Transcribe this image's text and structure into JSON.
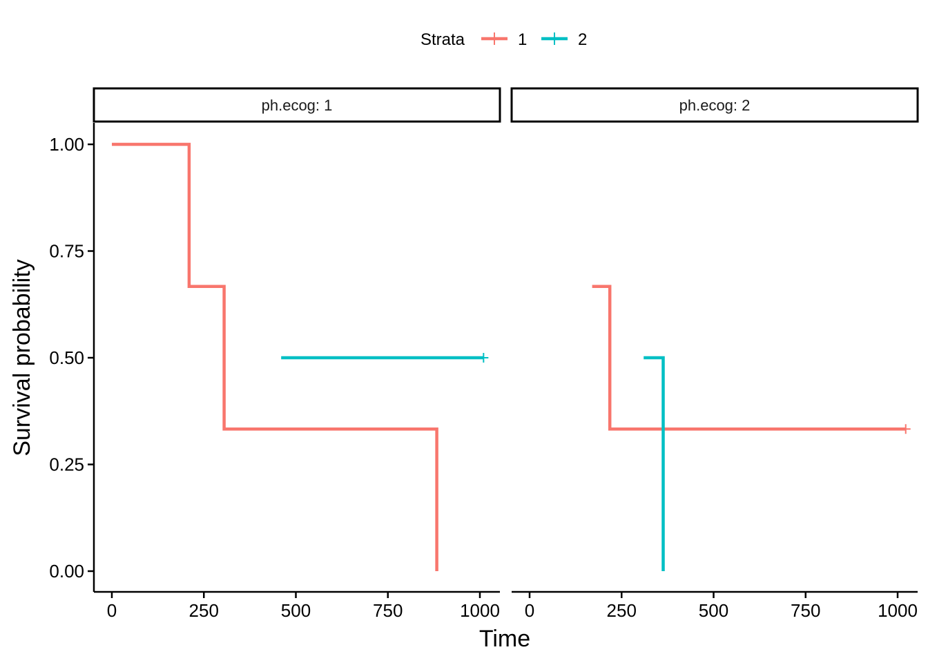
{
  "chart_data": {
    "type": "line",
    "subtype": "kaplan-meier step",
    "xlabel": "Time",
    "ylabel": "Survival probability",
    "xlim": [
      -40,
      1040
    ],
    "ylim": [
      -0.05,
      1.05
    ],
    "x_ticks": [
      0,
      250,
      500,
      750,
      1000
    ],
    "x_tick_labels": [
      "0",
      "250",
      "500",
      "750",
      "1000"
    ],
    "y_ticks": [
      0,
      0.25,
      0.5,
      0.75,
      1.0
    ],
    "y_tick_labels": [
      "0.00",
      "0.25",
      "0.50",
      "0.75",
      "1.00"
    ],
    "grid": false,
    "legend": {
      "title": "Strata",
      "position": "top",
      "entries": [
        {
          "label": "1",
          "color": "#F8766D"
        },
        {
          "label": "2",
          "color": "#00BFC4"
        }
      ]
    },
    "panels": [
      {
        "strip": "ph.ecog: 1",
        "series": [
          {
            "name": "1",
            "color": "#F8766D",
            "points": [
              [
                0,
                1.0
              ],
              [
                210,
                1.0
              ],
              [
                210,
                0.667
              ],
              [
                305,
                0.667
              ],
              [
                305,
                0.333
              ],
              [
                883,
                0.333
              ],
              [
                883,
                0.0
              ]
            ],
            "censor": []
          },
          {
            "name": "2",
            "color": "#00BFC4",
            "points": [
              [
                460,
                0.5
              ],
              [
                1010,
                0.5
              ]
            ],
            "censor": [
              [
                1010,
                0.5
              ]
            ]
          }
        ]
      },
      {
        "strip": "ph.ecog: 2",
        "series": [
          {
            "name": "1",
            "color": "#F8766D",
            "points": [
              [
                170,
                0.667
              ],
              [
                218,
                0.667
              ],
              [
                218,
                0.333
              ],
              [
                1022,
                0.333
              ]
            ],
            "censor": [
              [
                1022,
                0.333
              ]
            ]
          },
          {
            "name": "2",
            "color": "#00BFC4",
            "points": [
              [
                310,
                0.5
              ],
              [
                363,
                0.5
              ],
              [
                363,
                0.0
              ]
            ],
            "censor": []
          }
        ]
      }
    ]
  }
}
